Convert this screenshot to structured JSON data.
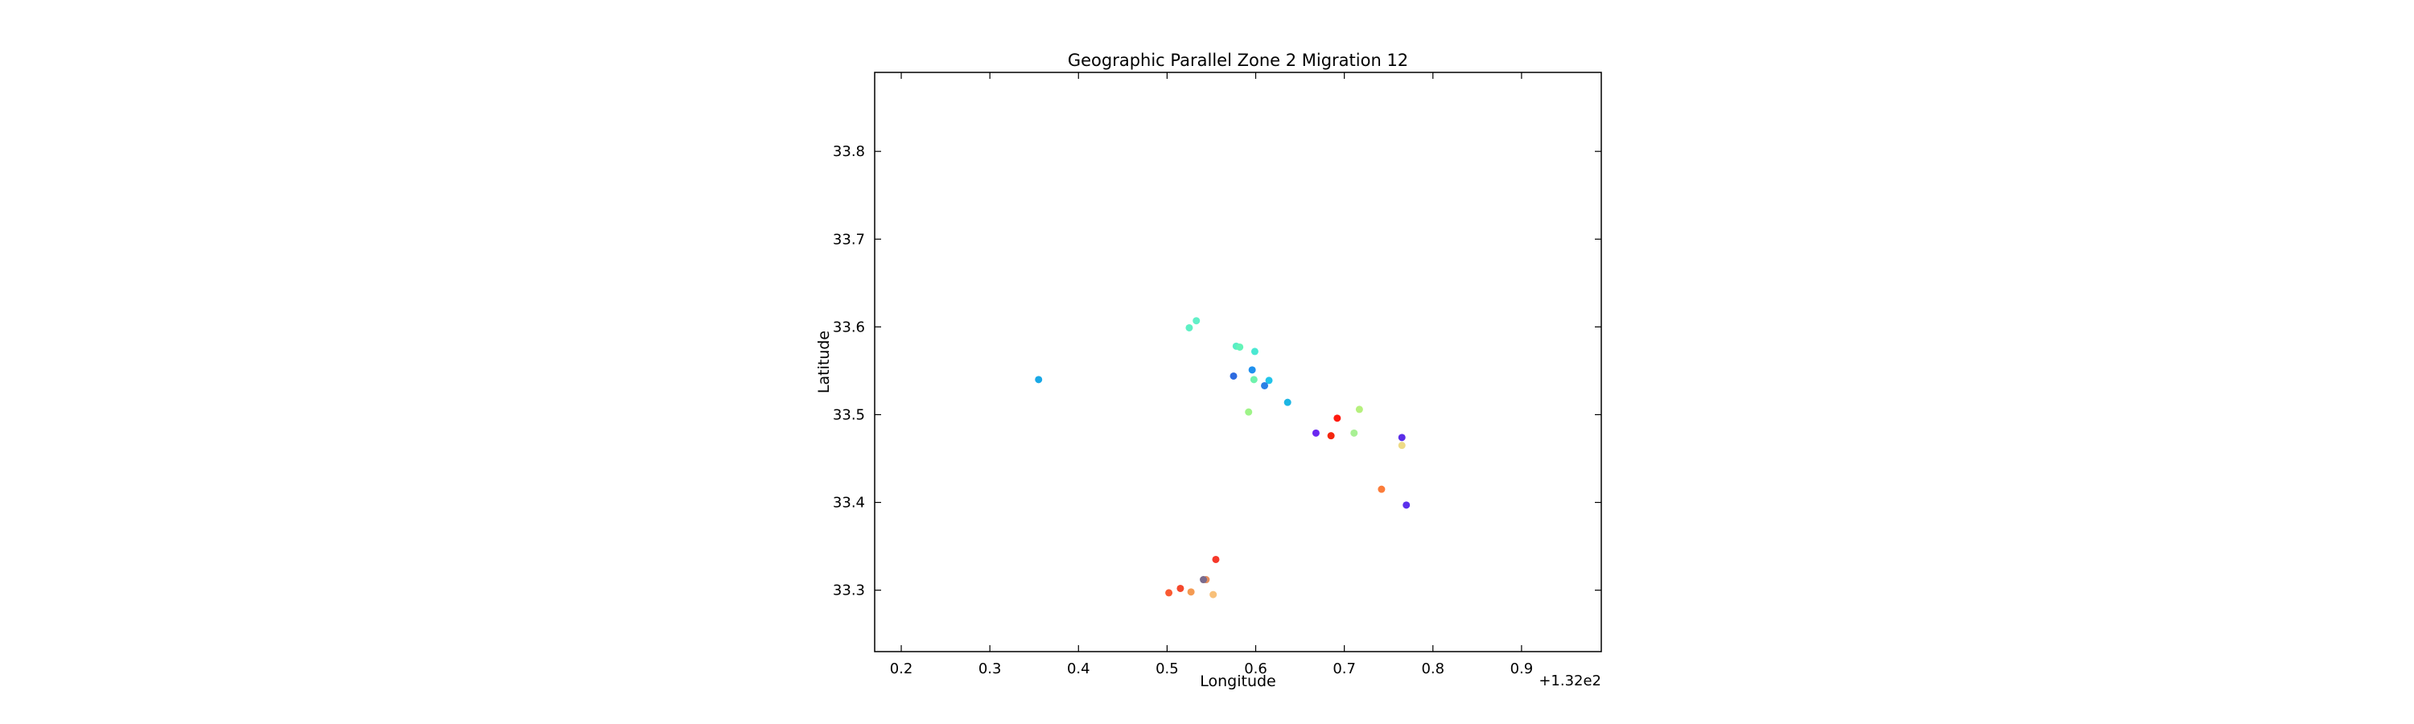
{
  "chart_data": {
    "type": "scatter",
    "title": "Geographic Parallel Zone 2 Migration 12",
    "xlabel": "Longitude",
    "ylabel": "Latitude",
    "x_offset_label": "+1.32e2",
    "xlim": [
      132.17,
      132.99
    ],
    "ylim": [
      33.23,
      33.89
    ],
    "xticks": [
      0.2,
      0.3,
      0.4,
      0.5,
      0.6,
      0.7,
      0.8,
      0.9
    ],
    "x_tick_labels": [
      "0.2",
      "0.3",
      "0.4",
      "0.5",
      "0.6",
      "0.7",
      "0.8",
      "0.9"
    ],
    "yticks": [
      33.3,
      33.4,
      33.5,
      33.6,
      33.7,
      33.8
    ],
    "y_tick_labels": [
      "33.3",
      "33.4",
      "33.5",
      "33.6",
      "33.7",
      "33.8"
    ],
    "grid": false,
    "points": [
      {
        "x": 132.355,
        "y": 33.54,
        "color": "#19a8e6"
      },
      {
        "x": 132.533,
        "y": 33.607,
        "color": "#62f0c8"
      },
      {
        "x": 132.525,
        "y": 33.599,
        "color": "#5ef0c4"
      },
      {
        "x": 132.578,
        "y": 33.578,
        "color": "#58eec6"
      },
      {
        "x": 132.582,
        "y": 33.577,
        "color": "#64f4b8"
      },
      {
        "x": 132.599,
        "y": 33.572,
        "color": "#4ae8d2"
      },
      {
        "x": 132.575,
        "y": 33.544,
        "color": "#2d6be0"
      },
      {
        "x": 132.596,
        "y": 33.551,
        "color": "#1e90ee"
      },
      {
        "x": 132.598,
        "y": 33.54,
        "color": "#6ff2ac"
      },
      {
        "x": 132.615,
        "y": 33.539,
        "color": "#22c4ea"
      },
      {
        "x": 132.61,
        "y": 33.533,
        "color": "#2a80e6"
      },
      {
        "x": 132.636,
        "y": 33.514,
        "color": "#1cb6e4"
      },
      {
        "x": 132.592,
        "y": 33.503,
        "color": "#9ef488"
      },
      {
        "x": 132.717,
        "y": 33.506,
        "color": "#b6f07e"
      },
      {
        "x": 132.692,
        "y": 33.496,
        "color": "#ff1a0e"
      },
      {
        "x": 132.668,
        "y": 33.479,
        "color": "#6a28f0"
      },
      {
        "x": 132.685,
        "y": 33.476,
        "color": "#f4260e"
      },
      {
        "x": 132.711,
        "y": 33.479,
        "color": "#a8f094"
      },
      {
        "x": 132.765,
        "y": 33.474,
        "color": "#5a2ee8"
      },
      {
        "x": 132.765,
        "y": 33.465,
        "color": "#eedb86"
      },
      {
        "x": 132.742,
        "y": 33.415,
        "color": "#fb7c3a"
      },
      {
        "x": 132.77,
        "y": 33.397,
        "color": "#5b30ec"
      },
      {
        "x": 132.555,
        "y": 33.335,
        "color": "#f6382a"
      },
      {
        "x": 132.544,
        "y": 33.312,
        "color": "#e88e5a"
      },
      {
        "x": 132.541,
        "y": 33.312,
        "color": "#7a6a8c"
      },
      {
        "x": 132.515,
        "y": 33.302,
        "color": "#f4482c"
      },
      {
        "x": 132.527,
        "y": 33.298,
        "color": "#f49a52"
      },
      {
        "x": 132.502,
        "y": 33.297,
        "color": "#fa5a32"
      },
      {
        "x": 132.552,
        "y": 33.295,
        "color": "#f8c07a"
      }
    ]
  }
}
